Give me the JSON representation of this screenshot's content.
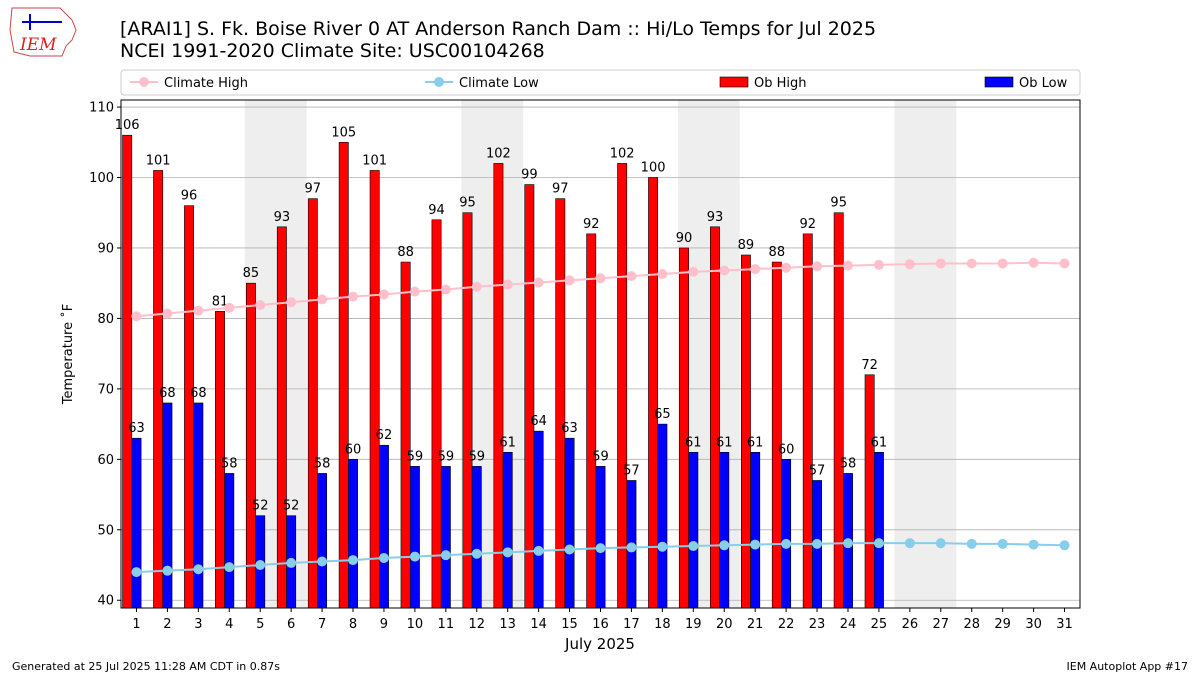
{
  "logo_text": "IEM",
  "footer_left": "Generated at 25 Jul 2025 11:28 AM CDT in 0.87s",
  "footer_right": "IEM Autoplot App #17",
  "chart_data": {
    "type": "bar",
    "title": "[ARAI1] S. Fk. Boise River 0 AT Anderson Ranch Dam :: Hi/Lo Temps for Jul 2025",
    "subtitle": "NCEI 1991-2020 Climate Site: USC00104268",
    "y_label": "Temperature ˚F",
    "x_label": "July 2025",
    "categories": [
      "1",
      "2",
      "3",
      "4",
      "5",
      "6",
      "7",
      "8",
      "9",
      "10",
      "11",
      "12",
      "13",
      "14",
      "15",
      "16",
      "17",
      "18",
      "19",
      "20",
      "21",
      "22",
      "23",
      "24",
      "25",
      "26",
      "27",
      "28",
      "29",
      "30",
      "31"
    ],
    "series": [
      {
        "name": "Climate High",
        "type": "line",
        "color": "#ffc0cb",
        "values": [
          80.3,
          80.7,
          81.1,
          81.5,
          81.9,
          82.3,
          82.7,
          83.1,
          83.4,
          83.8,
          84.1,
          84.5,
          84.8,
          85.1,
          85.4,
          85.7,
          86.0,
          86.3,
          86.6,
          86.8,
          87.0,
          87.2,
          87.4,
          87.5,
          87.6,
          87.7,
          87.8,
          87.8,
          87.8,
          87.9,
          87.8
        ]
      },
      {
        "name": "Climate Low",
        "type": "line",
        "color": "#87ceeb",
        "values": [
          44.0,
          44.2,
          44.4,
          44.7,
          45.0,
          45.3,
          45.5,
          45.7,
          46.0,
          46.2,
          46.4,
          46.6,
          46.8,
          47.0,
          47.2,
          47.4,
          47.5,
          47.6,
          47.7,
          47.8,
          47.9,
          48.0,
          48.0,
          48.1,
          48.1,
          48.1,
          48.1,
          48.0,
          48.0,
          47.9,
          47.8
        ]
      },
      {
        "name": "Ob High",
        "type": "bar",
        "color": "#ff0000",
        "values": [
          106,
          101,
          96,
          81,
          85,
          93,
          97,
          105,
          101,
          88,
          94,
          95,
          102,
          99,
          97,
          92,
          102,
          100,
          90,
          93,
          89,
          88,
          92,
          95,
          72,
          null,
          null,
          null,
          null,
          null,
          null
        ]
      },
      {
        "name": "Ob Low",
        "type": "bar",
        "color": "#0000ff",
        "values": [
          63,
          68,
          68,
          58,
          52,
          52,
          58,
          60,
          62,
          59,
          59,
          59,
          61,
          64,
          63,
          59,
          57,
          65,
          61,
          61,
          61,
          60,
          57,
          58,
          61,
          null,
          null,
          null,
          null,
          null,
          null
        ]
      }
    ],
    "ylim": [
      38.9,
      111
    ],
    "yticks": [
      40,
      50,
      60,
      70,
      80,
      90,
      100,
      110
    ],
    "grid": true,
    "legend": "top"
  }
}
